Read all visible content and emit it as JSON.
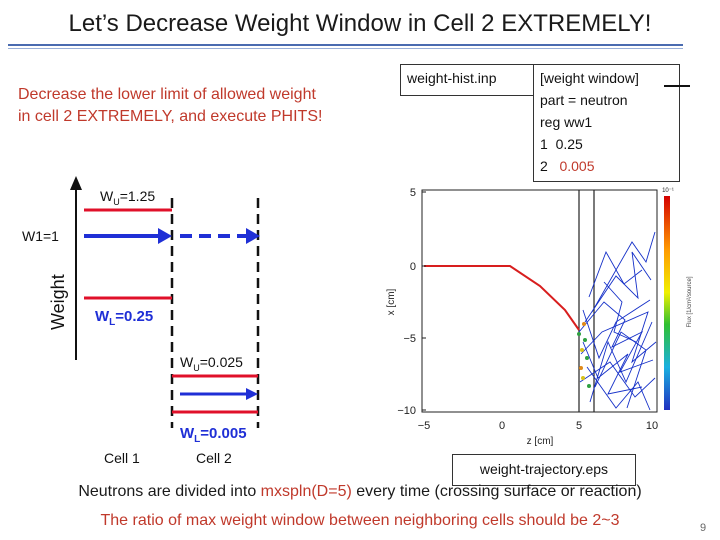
{
  "slide": {
    "title": "Let’s Decrease Weight Window in Cell 2 EXTREMELY!",
    "lead_line1": "Decrease the lower limit of allowed weight",
    "lead_line2": "in cell 2 EXTREMELY, and execute PHITS!",
    "page_number": "9"
  },
  "input_box": {
    "file_name": "weight-hist.inp",
    "section": "[weight window]",
    "line_part": "part = neutron",
    "line_reg": "reg ww1",
    "row1_cell": "1",
    "row1_value": "0.25",
    "row2_cell": "2",
    "row2_value": "0.005"
  },
  "diagram": {
    "axis_label": "Weight",
    "w1_label": "W1=1",
    "wu1_main": "W",
    "wu1_sub": "U",
    "wu1_value": "=1.25",
    "wl1_main": "W",
    "wl1_sub": "L",
    "wl1_value": "=0.25",
    "wu2_main": "W",
    "wu2_sub": "U",
    "wu2_value": "=0.025",
    "wl2_main": "W",
    "wl2_sub": "L",
    "wl2_value": "=0.005",
    "cell1_label": "Cell 1",
    "cell2_label": "Cell 2"
  },
  "plot": {
    "ylabel": "x [cm]",
    "xlabel": "z [cm]",
    "yticks": [
      "5",
      "0",
      "−5",
      "−10"
    ],
    "xticks": [
      "−5",
      "0",
      "5",
      "10"
    ],
    "colorbar_label": "Flux [1/cm²/source]",
    "colorbar_top": "10⁻¹",
    "output_file": "weight-trajectory.eps"
  },
  "footer": {
    "line1_pre": "Neutrons are divided into ",
    "line1_param": "mxspln(D=5)",
    "line1_post": " every time (crossing surface or reaction)",
    "line2": "The ratio of max weight window between neighboring cells should be 2~3"
  },
  "colors": {
    "accent_red": "#c0392b",
    "weight_blue": "#1f2fd6",
    "window_red": "#e0102a",
    "rule_blue": "#4a6bb0"
  }
}
